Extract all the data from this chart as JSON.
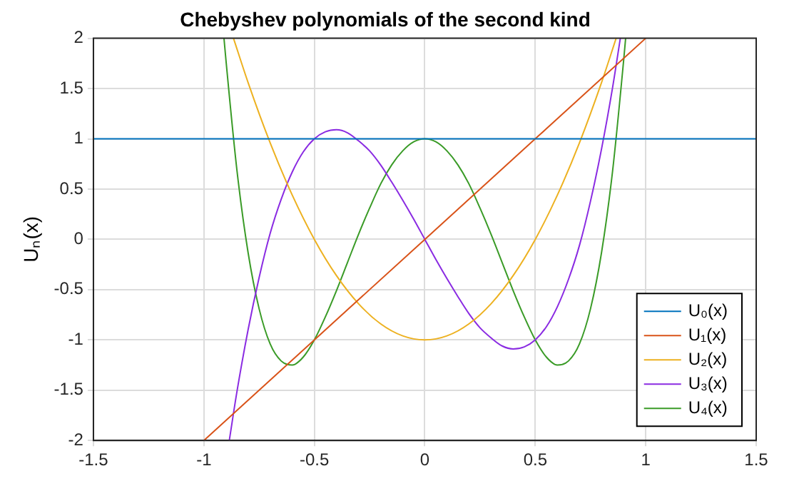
{
  "chart_data": {
    "type": "line",
    "title": "Chebyshev polynomials of the second kind",
    "ylabel": "Uₙ(x)",
    "xlim": [
      -1.5,
      1.5
    ],
    "xticks": [
      -1.5,
      -1,
      -0.5,
      0,
      0.5,
      1,
      1.5
    ],
    "ylim": [
      -2,
      2
    ],
    "yticks": [
      -2,
      -1.5,
      -1,
      -0.5,
      0,
      0.5,
      1,
      1.5,
      2
    ],
    "grid": true,
    "legend": "bottom right",
    "marker": "none",
    "line_style": "solid",
    "series": [
      {
        "name": "U₀(x)",
        "color": "#0072bd",
        "x": [
          -1.5,
          1.5
        ],
        "values": [
          1,
          1
        ]
      },
      {
        "name": "U₁(x)",
        "color": "#d95319",
        "x": [
          -1,
          0,
          1
        ],
        "values": [
          -2,
          0,
          2
        ]
      },
      {
        "name": "U₂(x)",
        "color": "#edb120",
        "x": [
          -0.866,
          -0.8,
          -0.7,
          -0.6,
          -0.5,
          -0.4,
          -0.3,
          -0.2,
          -0.1,
          0,
          0.1,
          0.2,
          0.3,
          0.4,
          0.5,
          0.6,
          0.7,
          0.8,
          0.866
        ],
        "values": [
          2,
          1.56,
          0.96,
          0.44,
          0,
          -0.36,
          -0.64,
          -0.84,
          -0.96,
          -1,
          -0.96,
          -0.84,
          -0.64,
          -0.36,
          0,
          0.44,
          0.96,
          1.56,
          2
        ]
      },
      {
        "name": "U₃(x)",
        "color": "#8a2be2",
        "x": [
          -0.885,
          -0.85,
          -0.8,
          -0.75,
          -0.7,
          -0.65,
          -0.6,
          -0.55,
          -0.5,
          -0.45,
          -0.4,
          -0.35,
          -0.3,
          -0.25,
          -0.2,
          -0.15,
          -0.1,
          -0.05,
          0,
          0.05,
          0.1,
          0.15,
          0.2,
          0.25,
          0.3,
          0.35,
          0.4,
          0.45,
          0.5,
          0.55,
          0.6,
          0.65,
          0.7,
          0.75,
          0.8,
          0.85,
          0.885
        ],
        "values": [
          -2,
          -1.51,
          -0.9,
          -0.38,
          0.06,
          0.4,
          0.67,
          0.87,
          1,
          1.07,
          1.09,
          1.06,
          0.98,
          0.88,
          0.74,
          0.57,
          0.39,
          0.2,
          0,
          -0.2,
          -0.39,
          -0.57,
          -0.74,
          -0.88,
          -0.98,
          -1.06,
          -1.09,
          -1.07,
          -1,
          -0.87,
          -0.67,
          -0.4,
          -0.06,
          0.38,
          0.9,
          1.51,
          2
        ]
      },
      {
        "name": "U₄(x)",
        "color": "#3a9b27",
        "x": [
          -0.909,
          -0.9,
          -0.85,
          -0.8,
          -0.75,
          -0.7,
          -0.65,
          -0.6,
          -0.55,
          -0.5,
          -0.45,
          -0.4,
          -0.35,
          -0.3,
          -0.25,
          -0.2,
          -0.15,
          -0.1,
          -0.05,
          0,
          0.05,
          0.1,
          0.15,
          0.2,
          0.25,
          0.3,
          0.35,
          0.4,
          0.45,
          0.5,
          0.55,
          0.6,
          0.65,
          0.7,
          0.75,
          0.8,
          0.85,
          0.9,
          0.909
        ],
        "values": [
          2,
          1.78,
          0.68,
          -0.13,
          -0.69,
          -1.04,
          -1.21,
          -1.25,
          -1.17,
          -1,
          -0.77,
          -0.51,
          -0.23,
          0.05,
          0.31,
          0.55,
          0.74,
          0.88,
          0.97,
          1,
          0.97,
          0.88,
          0.74,
          0.55,
          0.31,
          0.05,
          -0.23,
          -0.51,
          -0.77,
          -1,
          -1.17,
          -1.25,
          -1.21,
          -1.04,
          -0.69,
          -0.13,
          0.68,
          1.78,
          2
        ]
      }
    ]
  }
}
